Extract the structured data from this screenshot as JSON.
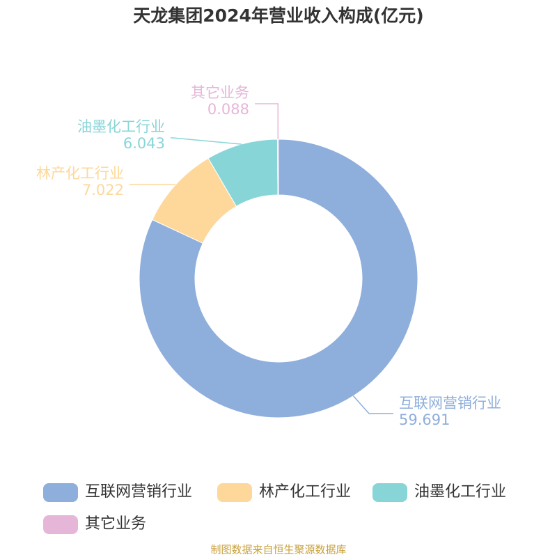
{
  "chart_data": {
    "type": "donut",
    "title": "天龙集团2024年营业收入构成(亿元)",
    "categories": [
      "互联网营销行业",
      "林产化工行业",
      "油墨化工行业",
      "其它业务"
    ],
    "values": [
      59.691,
      7.022,
      6.043,
      0.088
    ],
    "colors": [
      "#8eaedb",
      "#fdd89a",
      "#88d5d8",
      "#e6b6d9"
    ],
    "source": "制图数据来自恒生聚源数据库"
  }
}
